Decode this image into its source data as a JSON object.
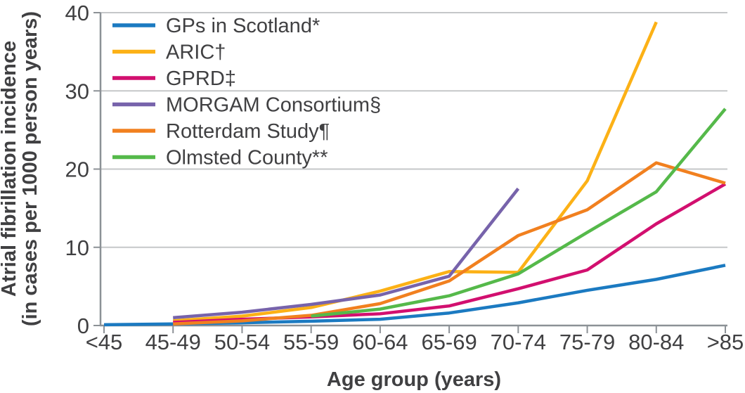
{
  "figure": {
    "background": "#ffffff",
    "text_color": "#404042",
    "axis_color": "#8c9196",
    "grid_color": "#c5c7c9"
  },
  "chart_data": {
    "type": "line",
    "title": "",
    "xlabel": "Age group (years)",
    "ylabel_line1": "Atrial fibrillation incidence",
    "ylabel_line2": "(in cases per 1000 person years)",
    "categories": [
      "<45",
      "45-49",
      "50-54",
      "55-59",
      "60-64",
      "65-69",
      "70-74",
      "75-79",
      "80-84",
      ">85"
    ],
    "ylim": [
      0,
      40
    ],
    "yticks": [
      0,
      10,
      20,
      30,
      40
    ],
    "grid": "horizontal",
    "legend_position": "top-left",
    "series": [
      {
        "name": "GPs in Scotland*",
        "color": "#1b7ac1",
        "values": [
          0.1,
          0.2,
          0.35,
          0.55,
          0.8,
          1.6,
          2.9,
          4.5,
          5.9,
          7.7
        ]
      },
      {
        "name": "ARIC†",
        "color": "#fcb116",
        "values": [
          null,
          0.6,
          1.2,
          2.3,
          4.4,
          6.9,
          6.8,
          18.5,
          38.8,
          null
        ]
      },
      {
        "name": "GPRD‡",
        "color": "#d20f6f",
        "values": [
          null,
          0.4,
          0.8,
          1.1,
          1.5,
          2.5,
          4.7,
          7.1,
          13.0,
          18.1
        ]
      },
      {
        "name": "MORGAM Consortium§",
        "color": "#7763ab",
        "values": [
          null,
          1.0,
          1.7,
          2.7,
          3.9,
          6.3,
          17.5,
          null,
          null,
          null
        ]
      },
      {
        "name": "Rotterdam Study¶",
        "color": "#f1801f",
        "values": [
          null,
          0.2,
          0.6,
          1.3,
          2.8,
          5.7,
          11.5,
          14.8,
          20.8,
          18.2
        ]
      },
      {
        "name": "Olmsted County**",
        "color": "#55b94a",
        "values": [
          null,
          null,
          null,
          1.2,
          2.1,
          3.8,
          6.6,
          11.9,
          17.1,
          27.7
        ]
      }
    ]
  }
}
